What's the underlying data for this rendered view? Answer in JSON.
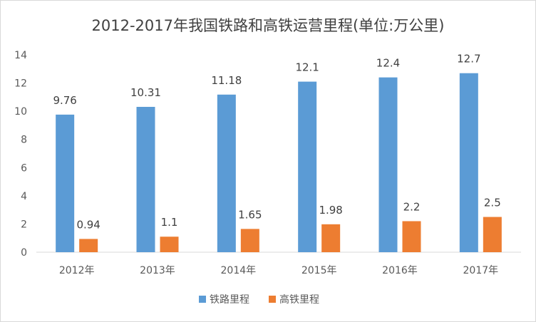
{
  "chart_data": {
    "type": "bar",
    "title": "2012-2017年我国铁路和高铁运营里程(单位:万公里)",
    "categories": [
      "2012年",
      "2013年",
      "2014年",
      "2015年",
      "2016年",
      "2017年"
    ],
    "series": [
      {
        "name": "铁路里程",
        "color": "#5B9BD5",
        "values": [
          9.76,
          10.31,
          11.18,
          12.1,
          12.4,
          12.7
        ],
        "labels": [
          "9.76",
          "10.31",
          "11.18",
          "12.1",
          "12.4",
          "12.7"
        ]
      },
      {
        "name": "高铁里程",
        "color": "#ED7D31",
        "values": [
          0.94,
          1.1,
          1.65,
          1.98,
          2.2,
          2.5
        ],
        "labels": [
          "0.94",
          "1.1",
          "1.65",
          "1.98",
          "2.2",
          "2.5"
        ]
      }
    ],
    "yticks": [
      "0",
      "2",
      "4",
      "6",
      "8",
      "10",
      "12",
      "14"
    ],
    "ylim": [
      0,
      14
    ],
    "xlabel": "",
    "ylabel": "",
    "grid": false,
    "legend": "bottom"
  }
}
